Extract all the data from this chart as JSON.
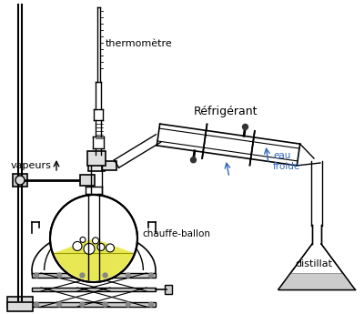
{
  "bg_color": "#ffffff",
  "labels": {
    "thermometre": "thermomètre",
    "vapeurs": "vapeurs",
    "refrigerant": "Réfrigérant",
    "eau_froide": "eau\nfroide",
    "chauffe_ballon": "chauffe-ballon",
    "distillat": "distillat"
  },
  "label_colors": {
    "thermometre": "#000000",
    "vapeurs": "#000000",
    "refrigerant": "#000000",
    "eau_froide": "#3366bb",
    "chauffe_ballon": "#000000",
    "distillat": "#000000"
  },
  "line_color": "#000000",
  "arrow_color": "#3366bb",
  "flask_liquid_color": "#e8e855",
  "distillat_liquid_color": "#cccccc"
}
